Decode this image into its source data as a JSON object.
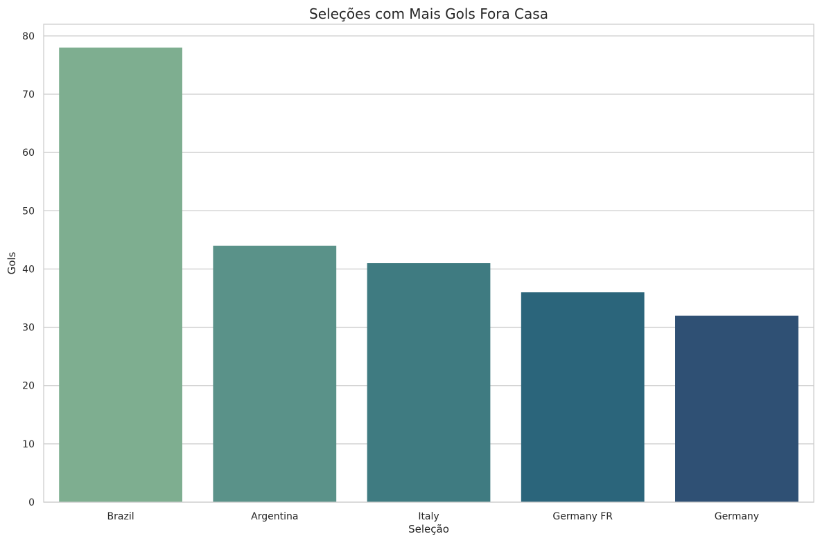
{
  "chart_data": {
    "type": "bar",
    "title": "Seleções com Mais Gols Fora Casa",
    "xlabel": "Seleção",
    "ylabel": "Gols",
    "categories": [
      "Brazil",
      "Argentina",
      "Italy",
      "Germany FR",
      "Germany"
    ],
    "values": [
      78,
      44,
      41,
      36,
      32
    ],
    "colors": [
      "#7eae90",
      "#5a9289",
      "#3f7b81",
      "#2b657b",
      "#2f5074"
    ],
    "ylim": [
      0,
      82
    ],
    "yticks": [
      0,
      10,
      20,
      30,
      40,
      50,
      60,
      70,
      80
    ],
    "grid": "horizontal"
  }
}
